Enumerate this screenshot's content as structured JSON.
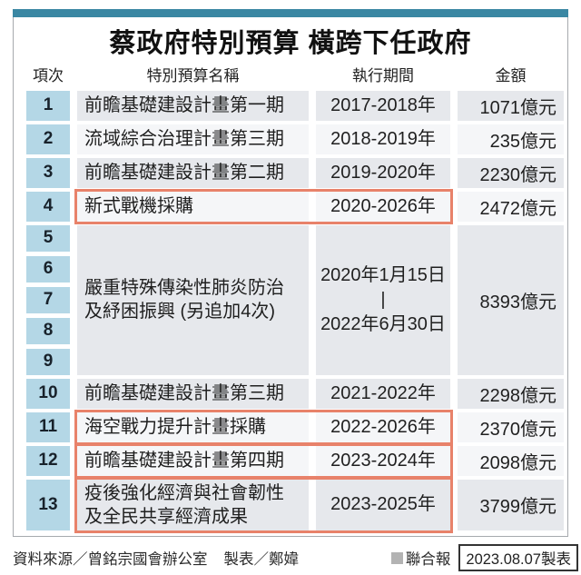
{
  "title": "蔡政府特別預算 橫跨下任政府",
  "columns": {
    "item": "項次",
    "name": "特別預算名稱",
    "period": "執行期間",
    "amount": "金額"
  },
  "rows": [
    {
      "item": "1",
      "name": "前瞻基礎建設計畫第一期",
      "period": "2017-2018年",
      "amount": "1071億元",
      "highlighted": false
    },
    {
      "item": "2",
      "name": "流域綜合治理計畫第三期",
      "period": "2018-2019年",
      "amount": "235億元",
      "highlighted": false
    },
    {
      "item": "3",
      "name": "前瞻基礎建設計畫第二期",
      "period": "2019-2020年",
      "amount": "2230億元",
      "highlighted": false
    },
    {
      "item": "4",
      "name": "新式戰機採購",
      "period": "2020-2026年",
      "amount": "2472億元",
      "highlighted": true
    },
    {
      "items": [
        "5",
        "6",
        "7",
        "8",
        "9"
      ],
      "name": "嚴重特殊傳染性肺炎防治\n及紓困振興 (另追加4次)",
      "period": "2020年1月15日\n|\n2022年6月30日",
      "amount": "8393億元",
      "highlighted": false
    },
    {
      "item": "10",
      "name": "前瞻基礎建設計畫第三期",
      "period": "2021-2022年",
      "amount": "2298億元",
      "highlighted": false
    },
    {
      "item": "11",
      "name": "海空戰力提升計畫採購",
      "period": "2022-2026年",
      "amount": "2370億元",
      "highlighted": true
    },
    {
      "item": "12",
      "name": "前瞻基礎建設計畫第四期",
      "period": "2023-2024年",
      "amount": "2098億元",
      "highlighted": true
    },
    {
      "item": "13",
      "name": "疫後強化經濟與社會韌性\n及全民共享經濟成果",
      "period": "2023-2025年",
      "amount": "3799億元",
      "highlighted": true
    }
  ],
  "footer": {
    "source": "資料來源／曾銘宗國會辦公室",
    "maker": "製表／鄭媁",
    "brand": "聯合報",
    "date_note": "2023.08.07製表"
  },
  "colors": {
    "accent_teal": "#3a87a3",
    "item_cell_blue": "#b4d7e6",
    "row_dark": "#e6e8ec",
    "row_light": "#f5f6f8",
    "highlight_orange": "#e8826a",
    "brand_square_gray": "#b3b3b3"
  },
  "chart_data": {
    "type": "table",
    "title": "蔡政府特別預算 橫跨下任政府",
    "columns": [
      "項次",
      "特別預算名稱",
      "執行期間",
      "金額"
    ],
    "rows": [
      [
        "1",
        "前瞻基礎建設計畫第一期",
        "2017-2018年",
        "1071億元"
      ],
      [
        "2",
        "流域綜合治理計畫第三期",
        "2018-2019年",
        "235億元"
      ],
      [
        "3",
        "前瞻基礎建設計畫第二期",
        "2019-2020年",
        "2230億元"
      ],
      [
        "4",
        "新式戰機採購",
        "2020-2026年",
        "2472億元"
      ],
      [
        "5-9",
        "嚴重特殊傳染性肺炎防治及紓困振興 (另追加4次)",
        "2020年1月15日-2022年6月30日",
        "8393億元"
      ],
      [
        "10",
        "前瞻基礎建設計畫第三期",
        "2021-2022年",
        "2298億元"
      ],
      [
        "11",
        "海空戰力提升計畫採購",
        "2022-2026年",
        "2370億元"
      ],
      [
        "12",
        "前瞻基礎建設計畫第四期",
        "2023-2024年",
        "2098億元"
      ],
      [
        "13",
        "疫後強化經濟與社會韌性及全民共享經濟成果",
        "2023-2025年",
        "3799億元"
      ]
    ],
    "values_yi_yuan": [
      1071,
      235,
      2230,
      2472,
      8393,
      2298,
      2370,
      2098,
      3799
    ],
    "unit": "億元",
    "highlighted_items": [
      "4",
      "11",
      "12",
      "13"
    ]
  }
}
